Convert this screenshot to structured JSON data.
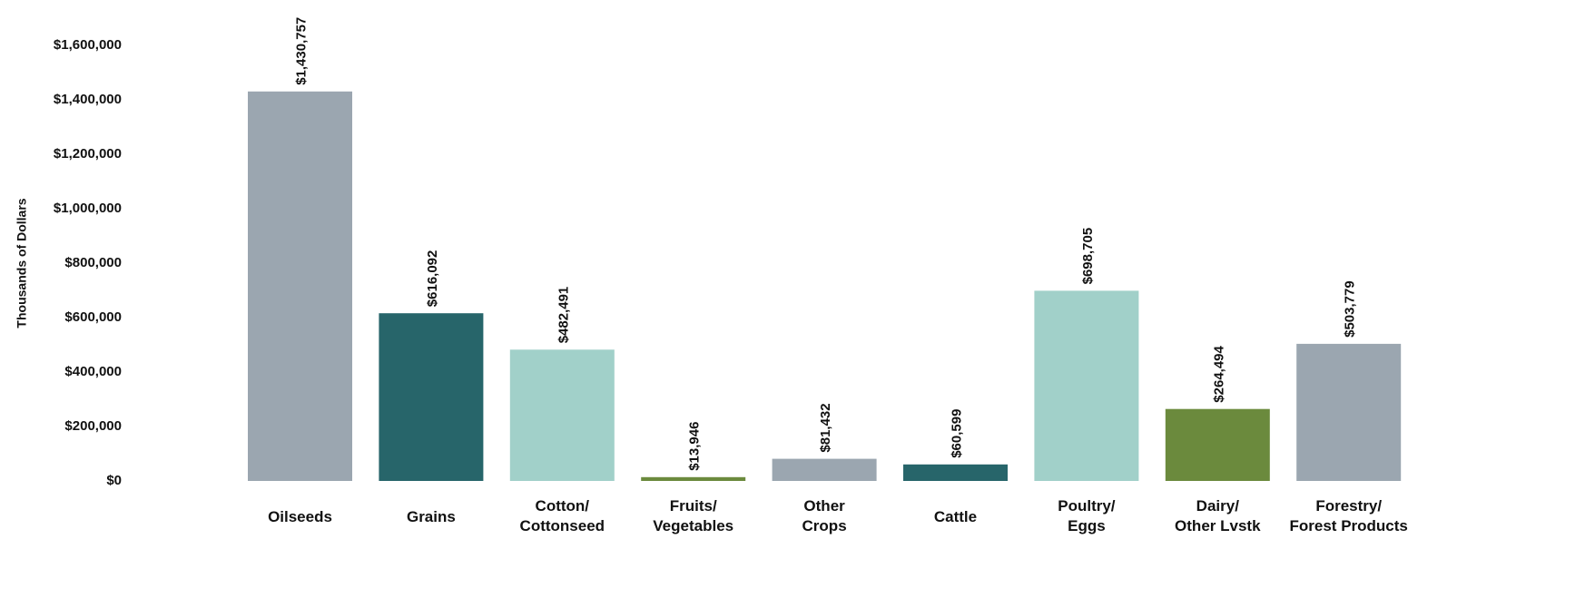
{
  "chart_data": {
    "type": "bar",
    "title": "",
    "xlabel": "",
    "ylabel": "Thousands  of Dollars",
    "ylim": [
      0,
      1600000
    ],
    "y_ticks": [
      0,
      200000,
      400000,
      600000,
      800000,
      1000000,
      1200000,
      1400000,
      1600000
    ],
    "y_tick_labels": [
      "$0",
      "$200,000",
      "$400,000",
      "$600,000",
      "$800,000",
      "$1,000,000",
      "$1,200,000",
      "$1,400,000",
      "$1,600,000"
    ],
    "grid": false,
    "legend": "none",
    "categories": [
      [
        "Oilseeds"
      ],
      [
        "Grains"
      ],
      [
        "Cotton/",
        "Cottonseed"
      ],
      [
        "Fruits/",
        "Vegetables"
      ],
      [
        "Other",
        "Crops"
      ],
      [
        "Cattle"
      ],
      [
        "Poultry/",
        "Eggs"
      ],
      [
        "Dairy/",
        "Other Lvstk"
      ],
      [
        "Forestry/",
        "Forest Products"
      ]
    ],
    "values": [
      1430757,
      616092,
      482491,
      13946,
      81432,
      60599,
      698705,
      264494,
      503779
    ],
    "value_labels": [
      "$1,430,757",
      "$616,092",
      "$482,491",
      "$13,946",
      "$81,432",
      "$60,599",
      "$698,705",
      "$264,494",
      "$503,779"
    ],
    "colors": [
      "#9ba6b0",
      "#27656a",
      "#a1d0c9",
      "#6b8a3d",
      "#9ba6b0",
      "#27656a",
      "#a1d0c9",
      "#6b8a3d",
      "#9ba6b0"
    ]
  }
}
